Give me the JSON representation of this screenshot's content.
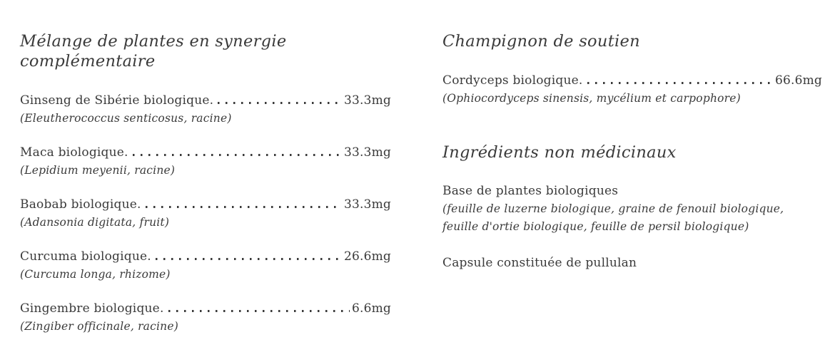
{
  "colors": {
    "text": "#3a3a3a",
    "background": "#ffffff"
  },
  "sections": {
    "blend": {
      "heading": "Mélange de plantes en synergie complémentaire",
      "items": [
        {
          "name": "Ginseng de Sibérie biologique.",
          "amount": "33.3mg",
          "botanical": "(Eleutherococcus senticosus, racine)"
        },
        {
          "name": "Maca biologique.",
          "amount": "33.3mg",
          "botanical": "(Lepidium meyenii, racine)"
        },
        {
          "name": "Baobab biologique.",
          "amount": "33.3mg",
          "botanical": "(Adansonia digitata, fruit)"
        },
        {
          "name": "Curcuma biologique.",
          "amount": "26.6mg",
          "botanical": "(Curcuma longa, rhizome)"
        },
        {
          "name": "Gingembre biologique.",
          "amount": "6.6mg",
          "botanical": "(Zingiber officinale, racine)"
        }
      ]
    },
    "mushroom": {
      "heading": "Champignon de soutien",
      "items": [
        {
          "name": "Cordyceps biologique.",
          "amount": "66.6mg",
          "botanical": "(Ophiocordyceps sinensis, mycélium et carpophore)"
        }
      ]
    },
    "non_medicinal": {
      "heading": "Ingrédients non médicinaux",
      "entries": [
        {
          "name": "Base de plantes biologiques",
          "detail": "(feuille de luzerne biologique, graine de fenouil biologique, feuille d'ortie biologique, feuille de persil biologique)"
        },
        {
          "name": "Capsule constituée de pullulan",
          "detail": ""
        }
      ]
    }
  }
}
